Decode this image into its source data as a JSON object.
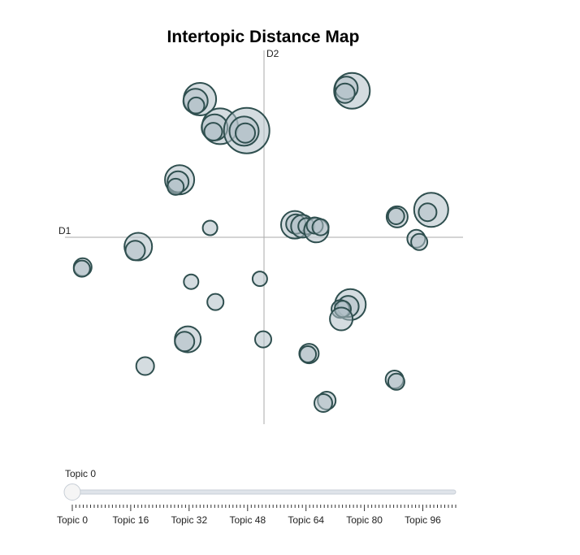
{
  "chart_data": {
    "type": "scatter",
    "title": "Intertopic Distance Map",
    "xlabel": "D1",
    "ylabel": "D2",
    "xlim": [
      -1,
      1
    ],
    "ylim": [
      -1,
      1
    ],
    "grid": false,
    "series": [
      {
        "points": [
          {
            "x": -0.322,
            "y": 0.739,
            "r": 20
          },
          {
            "x": -0.344,
            "y": 0.729,
            "r": 15
          },
          {
            "x": -0.341,
            "y": 0.705,
            "r": 10
          },
          {
            "x": -0.221,
            "y": 0.594,
            "r": 22
          },
          {
            "x": -0.248,
            "y": 0.588,
            "r": 16
          },
          {
            "x": -0.255,
            "y": 0.565,
            "r": 11
          },
          {
            "x": -0.087,
            "y": 0.571,
            "r": 28
          },
          {
            "x": -0.1,
            "y": 0.568,
            "r": 18
          },
          {
            "x": -0.094,
            "y": 0.558,
            "r": 12
          },
          {
            "x": 0.442,
            "y": 0.784,
            "r": 22
          },
          {
            "x": 0.414,
            "y": 0.799,
            "r": 14
          },
          {
            "x": 0.407,
            "y": 0.771,
            "r": 12
          },
          {
            "x": -0.424,
            "y": 0.308,
            "r": 18
          },
          {
            "x": -0.432,
            "y": 0.297,
            "r": 13
          },
          {
            "x": -0.444,
            "y": 0.27,
            "r": 10
          },
          {
            "x": -0.271,
            "y": 0.05,
            "r": 9
          },
          {
            "x": -0.632,
            "y": -0.05,
            "r": 17
          },
          {
            "x": -0.647,
            "y": -0.071,
            "r": 12
          },
          {
            "x": -0.911,
            "y": -0.16,
            "r": 11
          },
          {
            "x": -0.915,
            "y": -0.168,
            "r": 10
          },
          {
            "x": 0.155,
            "y": 0.067,
            "r": 17
          },
          {
            "x": 0.16,
            "y": 0.071,
            "r": 12
          },
          {
            "x": 0.193,
            "y": 0.059,
            "r": 14
          },
          {
            "x": 0.213,
            "y": 0.059,
            "r": 10
          },
          {
            "x": 0.263,
            "y": 0.038,
            "r": 15
          },
          {
            "x": 0.255,
            "y": 0.063,
            "r": 10
          },
          {
            "x": 0.284,
            "y": 0.054,
            "r": 10
          },
          {
            "x": 0.669,
            "y": 0.109,
            "r": 13
          },
          {
            "x": 0.664,
            "y": 0.113,
            "r": 10
          },
          {
            "x": 0.84,
            "y": 0.147,
            "r": 21
          },
          {
            "x": 0.822,
            "y": 0.134,
            "r": 11
          },
          {
            "x": 0.765,
            "y": -0.008,
            "r": 11
          },
          {
            "x": 0.78,
            "y": -0.025,
            "r": 10
          },
          {
            "x": -0.366,
            "y": -0.238,
            "r": 9
          },
          {
            "x": -0.021,
            "y": -0.222,
            "r": 9
          },
          {
            "x": -0.244,
            "y": -0.346,
            "r": 10
          },
          {
            "x": 0.434,
            "y": -0.36,
            "r": 19
          },
          {
            "x": 0.423,
            "y": -0.37,
            "r": 13
          },
          {
            "x": 0.384,
            "y": -0.384,
            "r": 11
          },
          {
            "x": 0.396,
            "y": -0.384,
            "r": 10
          },
          {
            "x": 0.388,
            "y": -0.437,
            "r": 14
          },
          {
            "x": -0.383,
            "y": -0.546,
            "r": 16
          },
          {
            "x": -0.399,
            "y": -0.558,
            "r": 12
          },
          {
            "x": -0.004,
            "y": -0.546,
            "r": 10
          },
          {
            "x": 0.226,
            "y": -0.622,
            "r": 12
          },
          {
            "x": 0.221,
            "y": -0.626,
            "r": 10
          },
          {
            "x": -0.597,
            "y": -0.689,
            "r": 11
          },
          {
            "x": 0.656,
            "y": -0.761,
            "r": 11
          },
          {
            "x": 0.665,
            "y": -0.773,
            "r": 10
          },
          {
            "x": 0.315,
            "y": -0.874,
            "r": 11
          },
          {
            "x": 0.298,
            "y": -0.887,
            "r": 11
          }
        ]
      }
    ]
  },
  "slider": {
    "current_label": "Topic 0",
    "min": 0,
    "max": 105,
    "value": 0,
    "ticks": [
      "Topic 0",
      "Topic 16",
      "Topic 32",
      "Topic 48",
      "Topic 64",
      "Topic 80",
      "Topic 96"
    ]
  },
  "colors": {
    "bubble_fill": "#b0bfc7",
    "bubble_stroke": "#2f4f4f",
    "axis_line": "#aaaaaa",
    "slider_track": "#dfe4ea",
    "slider_handle": "#f5f5f5"
  }
}
